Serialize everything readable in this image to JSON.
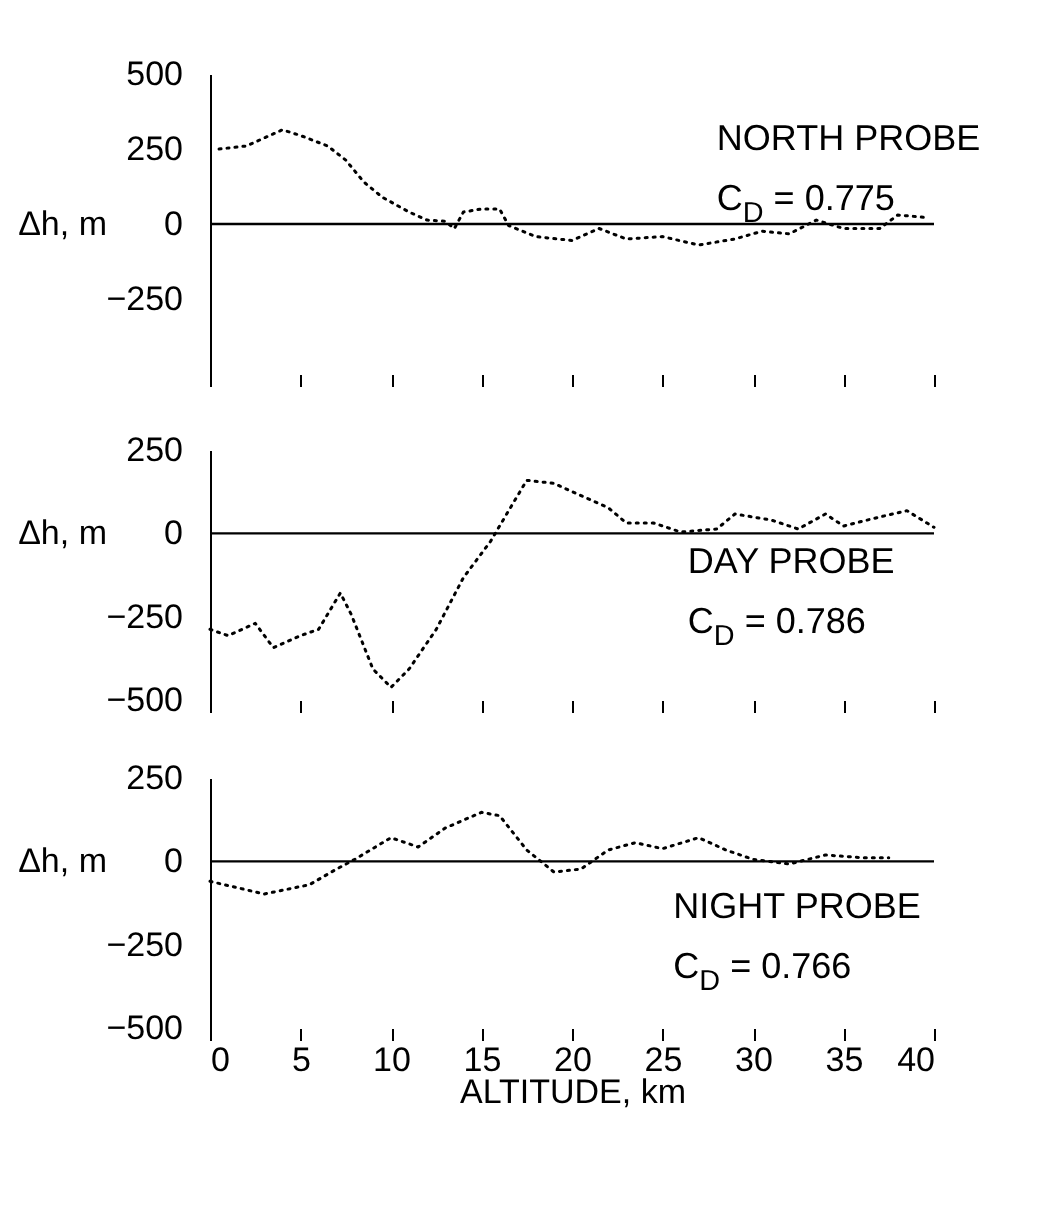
{
  "chart_data": [
    {
      "type": "line",
      "ylabel": "Δh, m",
      "xlim": [
        0,
        40
      ],
      "xticks": [
        0,
        5,
        10,
        15,
        20,
        25,
        30,
        35,
        40
      ],
      "ylim": [
        -500,
        500
      ],
      "yticks": [
        500,
        250,
        0,
        -250
      ],
      "tick_labels": "y",
      "line_style": "dotted",
      "ref_lines": [
        {
          "axis": "y",
          "value": 0
        }
      ],
      "annotations": [
        "NORTH PROBE",
        "C$_{D}$ = 0.775"
      ],
      "series": [
        {
          "color": "#000000",
          "x": [
            0.5,
            2,
            4,
            5,
            6.5,
            7.5,
            8.5,
            9.5,
            11,
            12,
            13,
            13.5,
            14,
            15,
            16,
            16.5,
            18,
            20,
            21.5,
            23,
            25,
            27,
            29,
            30.5,
            32,
            33.5,
            35,
            37,
            38,
            39.5
          ],
          "values": [
            250,
            260,
            314,
            295,
            260,
            213,
            140,
            90,
            40,
            13,
            9,
            -15,
            40,
            50,
            50,
            -5,
            -42,
            -55,
            -15,
            -50,
            -42,
            -70,
            -50,
            -24,
            -33,
            13,
            -15,
            -15,
            30,
            22
          ]
        }
      ]
    },
    {
      "type": "line",
      "ylabel": "Δh, m",
      "xlim": [
        0,
        40
      ],
      "xticks": [
        0,
        5,
        10,
        15,
        20,
        25,
        30,
        35,
        40
      ],
      "ylim": [
        -500,
        250
      ],
      "yticks": [
        250,
        0,
        -250,
        -500
      ],
      "tick_labels": "y",
      "line_style": "dotted",
      "ref_lines": [
        {
          "axis": "y",
          "value": 0
        }
      ],
      "annotations": [
        "DAY PROBE",
        "C$_{D}$ = 0.786"
      ],
      "series": [
        {
          "color": "#000000",
          "x": [
            0,
            1,
            2.5,
            3.5,
            5,
            6,
            7.2,
            7.8,
            9,
            10,
            11,
            12.5,
            14,
            15.5,
            16.5,
            17.5,
            19,
            20.5,
            22,
            23,
            24.5,
            26,
            28,
            29,
            31,
            32.5,
            34,
            35,
            37,
            38.5,
            40
          ],
          "values": [
            -288,
            -307,
            -270,
            -343,
            -307,
            -288,
            -179,
            -243,
            -407,
            -462,
            -407,
            -288,
            -133,
            -24,
            68,
            159,
            150,
            113,
            77,
            31,
            31,
            4,
            13,
            58,
            40,
            13,
            58,
            22,
            49,
            68,
            18
          ]
        }
      ]
    },
    {
      "type": "line",
      "ylabel": "Δh, m",
      "xlabel": "ALTITUDE, km",
      "xlim": [
        0,
        40
      ],
      "xticks": [
        0,
        5,
        10,
        15,
        20,
        25,
        30,
        35,
        40
      ],
      "ylim": [
        -500,
        250
      ],
      "yticks": [
        250,
        0,
        -250,
        -500
      ],
      "line_style": "dotted",
      "ref_lines": [
        {
          "axis": "y",
          "value": 0
        }
      ],
      "annotations": [
        "NIGHT PROBE",
        "C$_{D}$ = 0.766"
      ],
      "series": [
        {
          "color": "#000000",
          "x": [
            0,
            3,
            5.5,
            7,
            8,
            10,
            11.5,
            13,
            15,
            16,
            17.5,
            19,
            20.5,
            22,
            23.5,
            25,
            27,
            28.5,
            30,
            32,
            34,
            36,
            37.5
          ],
          "values": [
            -60,
            -98,
            -70,
            -23,
            6,
            71,
            43,
            100,
            147,
            137,
            34,
            -32,
            -23,
            34,
            56,
            38,
            71,
            34,
            6,
            -8,
            19,
            11,
            11
          ]
        }
      ]
    }
  ]
}
